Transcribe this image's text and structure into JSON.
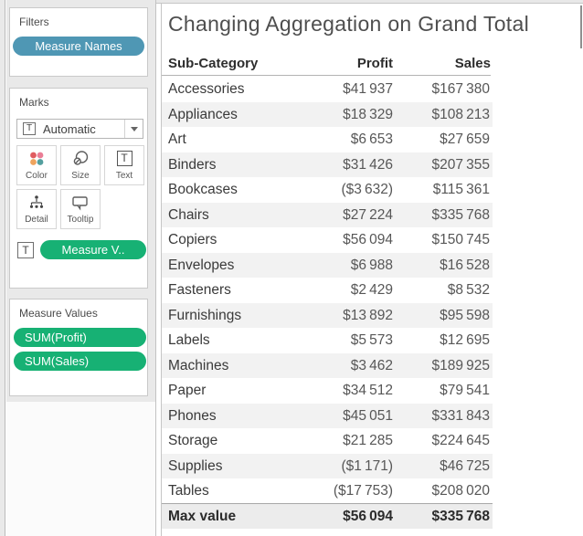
{
  "colors": {
    "dimension_pill": "#4F97B4",
    "measure_pill": "#17B174",
    "row_band": "#F2F2F2",
    "total_row_band": "#ECECEC"
  },
  "sidebar": {
    "filters": {
      "title": "Filters",
      "pills": [
        {
          "label": "Measure Names"
        }
      ]
    },
    "marks": {
      "title": "Marks",
      "mark_type": {
        "selected": "Automatic"
      },
      "buttons": [
        {
          "label": "Color"
        },
        {
          "label": "Size"
        },
        {
          "label": "Text"
        },
        {
          "label": "Detail"
        },
        {
          "label": "Tooltip"
        }
      ],
      "text_shelf_pill": {
        "label": "Measure V.."
      }
    },
    "measure_values": {
      "title": "Measure Values",
      "pills": [
        {
          "label": "SUM(Profit)"
        },
        {
          "label": "SUM(Sales)"
        }
      ]
    }
  },
  "worksheet": {
    "title": "Changing Aggregation on Grand Total",
    "table": {
      "columns": [
        "Sub-Category",
        "Profit",
        "Sales"
      ],
      "rows": [
        [
          "Accessories",
          "$41 937",
          "$167 380"
        ],
        [
          "Appliances",
          "$18 329",
          "$108 213"
        ],
        [
          "Art",
          "$6 653",
          "$27 659"
        ],
        [
          "Binders",
          "$31 426",
          "$207 355"
        ],
        [
          "Bookcases",
          "($3 632)",
          "$115 361"
        ],
        [
          "Chairs",
          "$27 224",
          "$335 768"
        ],
        [
          "Copiers",
          "$56 094",
          "$150 745"
        ],
        [
          "Envelopes",
          "$6 988",
          "$16 528"
        ],
        [
          "Fasteners",
          "$2 429",
          "$8 532"
        ],
        [
          "Furnishings",
          "$13 892",
          "$95 598"
        ],
        [
          "Labels",
          "$5 573",
          "$12 695"
        ],
        [
          "Machines",
          "$3 462",
          "$189 925"
        ],
        [
          "Paper",
          "$34 512",
          "$79 541"
        ],
        [
          "Phones",
          "$45 051",
          "$331 843"
        ],
        [
          "Storage",
          "$21 285",
          "$224 645"
        ],
        [
          "Supplies",
          "($1 171)",
          "$46 725"
        ],
        [
          "Tables",
          "($17 753)",
          "$208 020"
        ]
      ],
      "total_row": [
        "Max value",
        "$56 094",
        "$335 768"
      ]
    }
  }
}
